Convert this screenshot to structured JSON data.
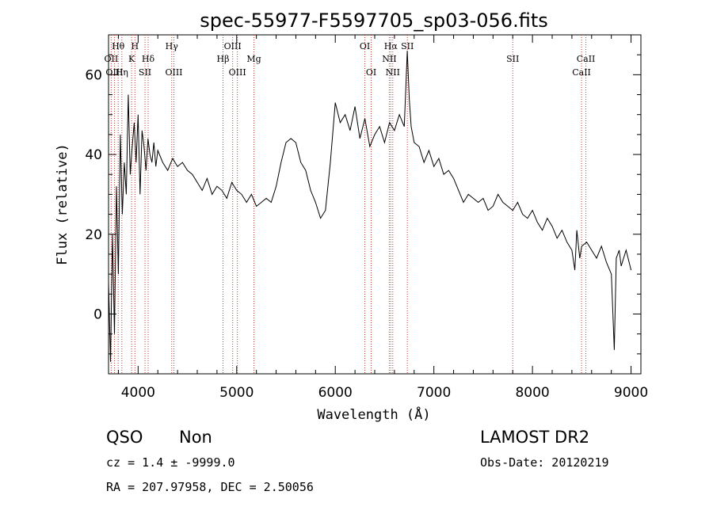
{
  "chart_data": {
    "type": "line",
    "title": "spec-55977-F5597705_sp03-056.fits",
    "xlabel": "Wavelength (Å)",
    "ylabel": "Flux (relative)",
    "xlim": [
      3700,
      9100
    ],
    "ylim": [
      -15,
      70
    ],
    "xticks": [
      4000,
      5000,
      6000,
      7000,
      8000,
      9000
    ],
    "yticks": [
      0,
      20,
      40,
      60
    ],
    "grid": false,
    "series": [
      {
        "color": "#000000",
        "x": [
          3700,
          3720,
          3740,
          3760,
          3780,
          3800,
          3820,
          3840,
          3860,
          3880,
          3900,
          3920,
          3940,
          3960,
          3980,
          4000,
          4020,
          4040,
          4060,
          4080,
          4100,
          4120,
          4140,
          4160,
          4180,
          4200,
          4250,
          4300,
          4350,
          4400,
          4450,
          4500,
          4550,
          4600,
          4650,
          4700,
          4750,
          4800,
          4850,
          4900,
          4950,
          5000,
          5050,
          5100,
          5150,
          5200,
          5250,
          5300,
          5350,
          5400,
          5450,
          5500,
          5550,
          5600,
          5650,
          5700,
          5750,
          5800,
          5850,
          5900,
          5950,
          6000,
          6050,
          6100,
          6150,
          6200,
          6250,
          6300,
          6350,
          6400,
          6450,
          6500,
          6550,
          6600,
          6650,
          6700,
          6730,
          6750,
          6770,
          6800,
          6850,
          6900,
          6950,
          7000,
          7050,
          7100,
          7150,
          7200,
          7250,
          7300,
          7350,
          7400,
          7450,
          7500,
          7550,
          7600,
          7650,
          7700,
          7750,
          7800,
          7850,
          7900,
          7950,
          8000,
          8050,
          8100,
          8150,
          8200,
          8250,
          8300,
          8350,
          8400,
          8430,
          8450,
          8480,
          8500,
          8550,
          8600,
          8650,
          8700,
          8750,
          8800,
          8830,
          8850,
          8880,
          8900,
          8950,
          9000
        ],
        "y": [
          8,
          -12,
          20,
          -5,
          32,
          10,
          45,
          25,
          38,
          30,
          55,
          35,
          42,
          48,
          38,
          50,
          30,
          46,
          42,
          36,
          44,
          40,
          38,
          43,
          37,
          41,
          38,
          36,
          39,
          37,
          38,
          36,
          35,
          33,
          31,
          34,
          30,
          32,
          31,
          29,
          33,
          31,
          30,
          28,
          30,
          27,
          28,
          29,
          28,
          32,
          38,
          43,
          44,
          43,
          38,
          36,
          31,
          28,
          24,
          26,
          38,
          53,
          48,
          50,
          46,
          52,
          44,
          49,
          42,
          45,
          47,
          43,
          48,
          46,
          50,
          47,
          66,
          54,
          47,
          43,
          42,
          38,
          41,
          37,
          39,
          35,
          36,
          34,
          31,
          28,
          30,
          29,
          28,
          29,
          26,
          27,
          30,
          28,
          27,
          26,
          28,
          25,
          24,
          26,
          23,
          21,
          24,
          22,
          19,
          21,
          18,
          16,
          11,
          21,
          14,
          17,
          18,
          16,
          14,
          17,
          13,
          10,
          -9,
          14,
          16,
          12,
          16,
          11
        ]
      }
    ],
    "lines": [
      {
        "label": "Hθ",
        "x": 3798,
        "row": 1
      },
      {
        "label": "OII",
        "x": 3727,
        "row": 2
      },
      {
        "label": "OIII",
        "x": 3760,
        "row": 3
      },
      {
        "label": "Hη",
        "x": 3835,
        "row": 3
      },
      {
        "label": "H",
        "x": 3968,
        "row": 1
      },
      {
        "label": "K",
        "x": 3934,
        "row": 2
      },
      {
        "label": "Hδ",
        "x": 4102,
        "row": 2
      },
      {
        "label": "SII",
        "x": 4070,
        "row": 3
      },
      {
        "label": "Hγ",
        "x": 4341,
        "row": 1
      },
      {
        "label": "OIII",
        "x": 4363,
        "row": 3
      },
      {
        "label": "OIII",
        "x": 4959,
        "row": 1
      },
      {
        "label": "Hβ",
        "x": 4861,
        "row": 2
      },
      {
        "label": "Mg",
        "x": 5175,
        "row": 2
      },
      {
        "label": "OIII",
        "x": 5007,
        "row": 3
      },
      {
        "label": "OI",
        "x": 6300,
        "row": 1
      },
      {
        "label": "OI",
        "x": 6364,
        "row": 3
      },
      {
        "label": "Hα",
        "x": 6563,
        "row": 1
      },
      {
        "label": "SII",
        "x": 6731,
        "row": 1
      },
      {
        "label": "NII",
        "x": 6548,
        "row": 2
      },
      {
        "label": "NII",
        "x": 6583,
        "row": 3
      },
      {
        "label": "SII",
        "x": 7800,
        "row": 2
      },
      {
        "label": "CaII",
        "x": 8542,
        "row": 2
      },
      {
        "label": "CaII",
        "x": 8498,
        "row": 3
      }
    ]
  },
  "info": {
    "class": "QSO",
    "subclass": "Non",
    "cz": "cz = 1.4 ± -9999.0",
    "radec": "RA = 207.97958, DEC =    2.50056",
    "survey": "LAMOST DR2",
    "obsdate": "Obs-Date: 20120219"
  }
}
